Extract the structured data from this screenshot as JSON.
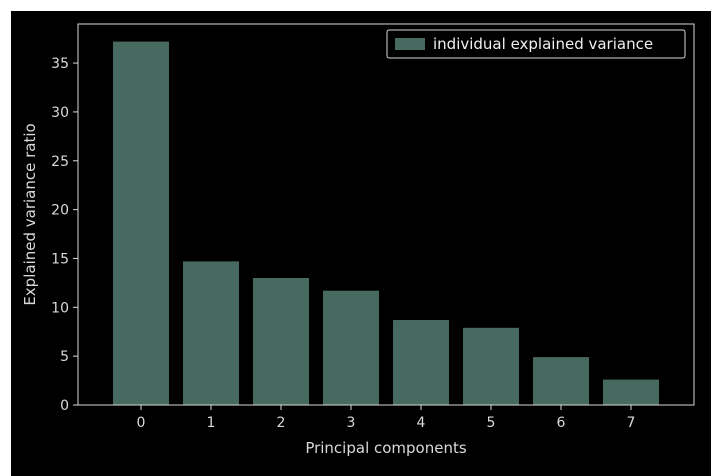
{
  "chart_data": {
    "type": "bar",
    "categories": [
      "0",
      "1",
      "2",
      "3",
      "4",
      "5",
      "6",
      "7"
    ],
    "series": [
      {
        "name": "individual explained variance",
        "values": [
          37.2,
          14.7,
          13.0,
          11.7,
          8.7,
          7.9,
          4.9,
          2.6
        ]
      }
    ],
    "title": "",
    "xlabel": "Principal components",
    "ylabel": "Explained variance ratio",
    "ylim": [
      0,
      39
    ],
    "yticks": [
      "0",
      "5",
      "10",
      "15",
      "20",
      "25",
      "30",
      "35"
    ],
    "xticks": [
      "0",
      "1",
      "2",
      "3",
      "4",
      "5",
      "6",
      "7"
    ],
    "grid": false,
    "legend_position": "top-right",
    "colors": {
      "background_outer": "#ffffff",
      "background_plot": "#000000",
      "bar": "#476a60",
      "axis": "#d9d9d9",
      "text": "#d9d9d9",
      "legend_border": "#d9d9d9"
    }
  }
}
